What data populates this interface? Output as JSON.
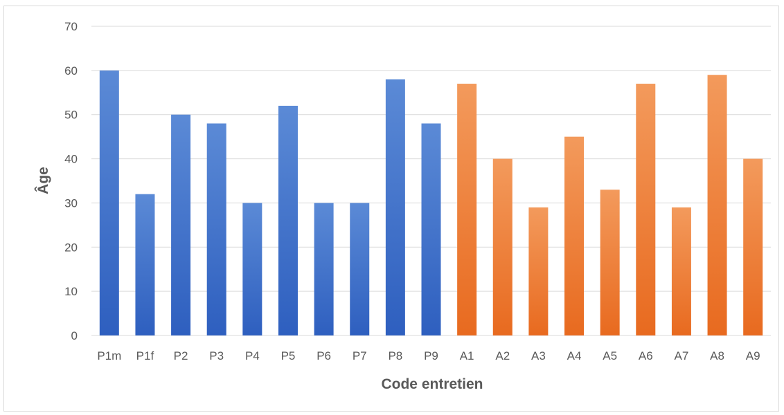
{
  "chart_data": {
    "type": "bar",
    "title": "",
    "xlabel": "Code entretien",
    "ylabel": "Âge",
    "ylim": [
      0,
      70
    ],
    "yticks": [
      0,
      10,
      20,
      30,
      40,
      50,
      60,
      70
    ],
    "grid": true,
    "legend": "none",
    "categories": [
      "P1m",
      "P1f",
      "P2",
      "P3",
      "P4",
      "P5",
      "P6",
      "P7",
      "P8",
      "P9",
      "A1",
      "A2",
      "A3",
      "A4",
      "A5",
      "A6",
      "A7",
      "A8",
      "A9"
    ],
    "values": [
      60,
      32,
      50,
      48,
      30,
      52,
      30,
      30,
      58,
      48,
      57,
      40,
      29,
      45,
      33,
      57,
      29,
      59,
      40
    ],
    "colors": {
      "P": "#4472C4",
      "A": "#ED7D31"
    }
  }
}
